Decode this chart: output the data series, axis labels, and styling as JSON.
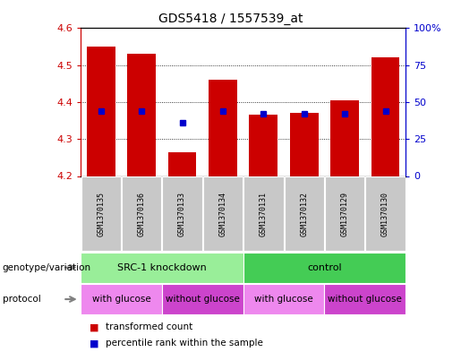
{
  "title": "GDS5418 / 1557539_at",
  "samples": [
    "GSM1370135",
    "GSM1370136",
    "GSM1370133",
    "GSM1370134",
    "GSM1370131",
    "GSM1370132",
    "GSM1370129",
    "GSM1370130"
  ],
  "transformed_counts": [
    4.55,
    4.53,
    4.265,
    4.46,
    4.365,
    4.37,
    4.405,
    4.52
  ],
  "percentile_ranks": [
    44,
    44,
    36,
    44,
    42,
    42,
    42,
    44
  ],
  "ylim": [
    4.2,
    4.6
  ],
  "yticks": [
    4.2,
    4.3,
    4.4,
    4.5,
    4.6
  ],
  "y2ticks": [
    0,
    25,
    50,
    75,
    100
  ],
  "y2labels": [
    "0",
    "25",
    "50",
    "75",
    "100%"
  ],
  "bar_color": "#cc0000",
  "dot_color": "#0000cc",
  "genotype_groups": [
    {
      "label": "SRC-1 knockdown",
      "start": 0,
      "end": 4,
      "color": "#99ee99"
    },
    {
      "label": "control",
      "start": 4,
      "end": 8,
      "color": "#44cc55"
    }
  ],
  "protocol_groups": [
    {
      "label": "with glucose",
      "start": 0,
      "end": 2,
      "color": "#ee88ee"
    },
    {
      "label": "without glucose",
      "start": 2,
      "end": 4,
      "color": "#cc44cc"
    },
    {
      "label": "with glucose",
      "start": 4,
      "end": 6,
      "color": "#ee88ee"
    },
    {
      "label": "without glucose",
      "start": 6,
      "end": 8,
      "color": "#cc44cc"
    }
  ],
  "legend_items": [
    {
      "label": "transformed count",
      "color": "#cc0000"
    },
    {
      "label": "percentile rank within the sample",
      "color": "#0000cc"
    }
  ],
  "left_axis_color": "#cc0000",
  "right_axis_color": "#0000cc",
  "bg_color": "#ffffff",
  "plot_bg_color": "#ffffff",
  "sample_bg_color": "#c8c8c8",
  "genotype_label": "genotype/variation",
  "protocol_label": "protocol"
}
